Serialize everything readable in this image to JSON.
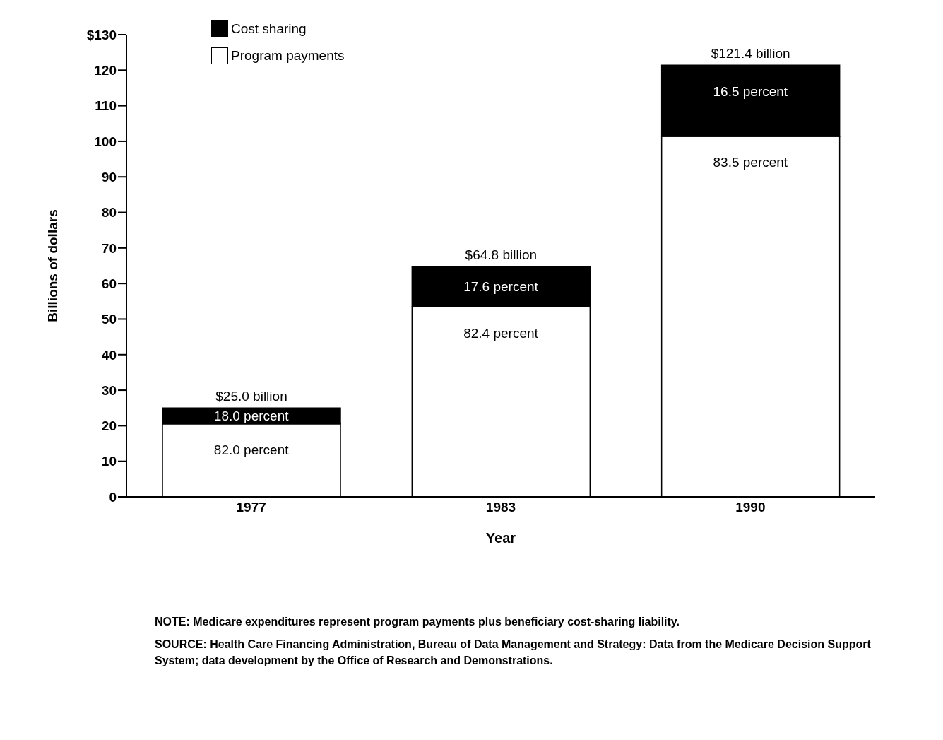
{
  "chart_data": {
    "type": "bar",
    "stacked": true,
    "xlabel": "Year",
    "ylabel": "Billions of dollars",
    "categories": [
      "1977",
      "1983",
      "1990"
    ],
    "series": [
      {
        "name": "Program payments",
        "color": "#ffffff",
        "values": [
          20.5,
          53.4,
          101.4
        ]
      },
      {
        "name": "Cost sharing",
        "color": "#000000",
        "values": [
          4.5,
          11.4,
          20.0
        ]
      }
    ],
    "totals": [
      "$25.0 billion",
      "$64.8 billion",
      "$121.4 billion"
    ],
    "ylim": [
      0,
      130
    ],
    "yticks": [
      0,
      10,
      20,
      30,
      40,
      50,
      60,
      70,
      80,
      90,
      100,
      110,
      120,
      {
        "value": 130,
        "label": "$130"
      }
    ],
    "grid": false,
    "legend": "top left",
    "annotations": [
      {
        "text": "82.0 percent",
        "x": "1977",
        "y": 20.5
      },
      {
        "text": "18.0 percent",
        "x": "1977",
        "y": 25.0
      },
      {
        "text": "82.4 percent",
        "x": "1983",
        "y": 53.4
      },
      {
        "text": "17.6 percent",
        "x": "1983",
        "y": 64.8
      },
      {
        "text": "83.5 percent",
        "x": "1990",
        "y": 101.4
      },
      {
        "text": "16.5 percent",
        "x": "1990",
        "y": 121.4
      },
      "NOTE:  Medicare expenditures represent program payments plus beneficiary cost-sharing liability.",
      "SOURCE:  Health Care Financing Administration, Bureau of Data Management and Strategy:  Data from the Medicare Decision Support System; data development by the Office of Research and Demonstrations."
    ]
  }
}
